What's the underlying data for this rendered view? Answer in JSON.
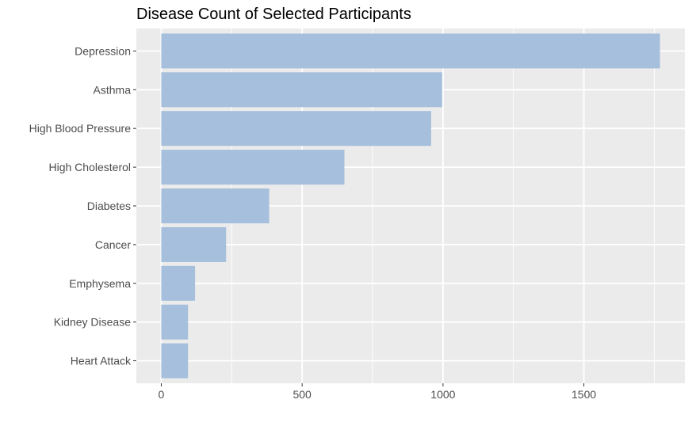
{
  "chart_data": {
    "type": "bar",
    "orientation": "horizontal",
    "title": "Disease Count of Selected Participants",
    "xlabel": "",
    "ylabel": "",
    "categories": [
      "Depression",
      "Asthma",
      "High Blood Pressure",
      "High Cholesterol",
      "Diabetes",
      "Cancer",
      "Emphysema",
      "Kidney Disease",
      "Heart Attack"
    ],
    "values": [
      1770,
      997,
      958,
      650,
      383,
      230,
      120,
      95,
      95
    ],
    "xlim": [
      -88.5,
      1858.5
    ],
    "xticks": [
      0,
      500,
      1000,
      1500
    ],
    "xtick_labels": [
      "0",
      "500",
      "1000",
      "1500"
    ],
    "grid": true,
    "legend": "none",
    "colors": {
      "bar": "#a5bfdc",
      "panel": "#ebebeb",
      "grid": "#ffffff",
      "tick_text": "#4d4d4d",
      "tick_mark": "#333333",
      "title": "#000000"
    }
  }
}
